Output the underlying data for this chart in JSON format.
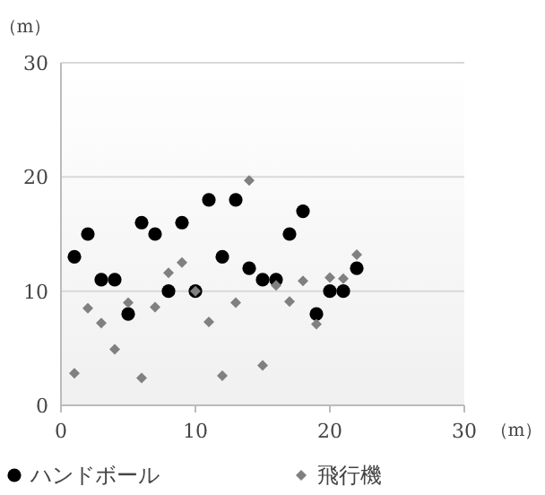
{
  "chart_data": {
    "type": "scatter",
    "xlabel": "（m）",
    "ylabel": "（m）",
    "xlim": [
      0,
      30
    ],
    "ylim": [
      0,
      30
    ],
    "xticks": [
      0,
      10,
      20,
      30
    ],
    "yticks": [
      0,
      10,
      20,
      30
    ],
    "grid": "y",
    "legend": "bottom",
    "series": [
      {
        "name": "ハンドボール",
        "color": "#000000",
        "marker": "circle",
        "x": [
          1,
          2,
          3,
          4,
          5,
          6,
          7,
          8,
          9,
          10,
          11,
          12,
          13,
          14,
          15,
          16,
          17,
          18,
          19,
          20,
          21,
          22
        ],
        "values": [
          13,
          15,
          11,
          11,
          8,
          16,
          15,
          10,
          16,
          10,
          18,
          13,
          18,
          12,
          11,
          11,
          15,
          17,
          8,
          10,
          10,
          12
        ]
      },
      {
        "name": "飛行機",
        "color": "#808080",
        "marker": "diamond",
        "x": [
          1,
          2,
          3,
          4,
          5,
          6,
          7,
          8,
          9,
          10,
          11,
          12,
          13,
          14,
          15,
          16,
          17,
          18,
          19,
          20,
          21,
          22
        ],
        "values": [
          2.8,
          8.5,
          7.2,
          4.9,
          9,
          2.4,
          8.6,
          11.6,
          12.5,
          10,
          7.3,
          2.6,
          9,
          19.7,
          3.5,
          10.5,
          9.1,
          10.9,
          7.1,
          11.2,
          11.1,
          13.2
        ]
      }
    ]
  }
}
